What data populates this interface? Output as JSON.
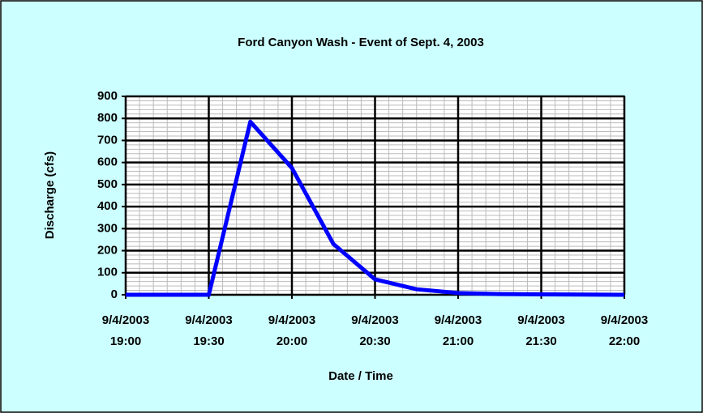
{
  "chart_data": {
    "type": "line",
    "title": "Ford Canyon Wash - Event of Sept. 4, 2003",
    "xlabel": "Date / Time",
    "ylabel": "Discharge (cfs)",
    "x": [
      "2003-09-04T19:00",
      "2003-09-04T19:15",
      "2003-09-04T19:30",
      "2003-09-04T19:45",
      "2003-09-04T20:00",
      "2003-09-04T20:15",
      "2003-09-04T20:30",
      "2003-09-04T20:45",
      "2003-09-04T21:00",
      "2003-09-04T21:15",
      "2003-09-04T21:30",
      "2003-09-04T21:45",
      "2003-09-04T22:00"
    ],
    "series": [
      {
        "name": "Discharge",
        "color": "#0000ff",
        "values": [
          0,
          0,
          0,
          785,
          575,
          230,
          70,
          25,
          8,
          3,
          2,
          1,
          0
        ]
      }
    ],
    "xlim": [
      "2003-09-04T19:00",
      "2003-09-04T22:00"
    ],
    "xticks": [
      {
        "value": "2003-09-04T19:00",
        "label": "9/4/2003 19:00"
      },
      {
        "value": "2003-09-04T19:30",
        "label": "9/4/2003 19:30"
      },
      {
        "value": "2003-09-04T20:00",
        "label": "9/4/2003 20:00"
      },
      {
        "value": "2003-09-04T20:30",
        "label": "9/4/2003 20:30"
      },
      {
        "value": "2003-09-04T21:00",
        "label": "9/4/2003 21:00"
      },
      {
        "value": "2003-09-04T21:30",
        "label": "9/4/2003 21:30"
      },
      {
        "value": "2003-09-04T22:00",
        "label": "9/4/2003 22:00"
      }
    ],
    "ylim": [
      0,
      900
    ],
    "yticks": [
      0,
      100,
      200,
      300,
      400,
      500,
      600,
      700,
      800,
      900
    ],
    "grid": true,
    "minor_grid": true
  }
}
